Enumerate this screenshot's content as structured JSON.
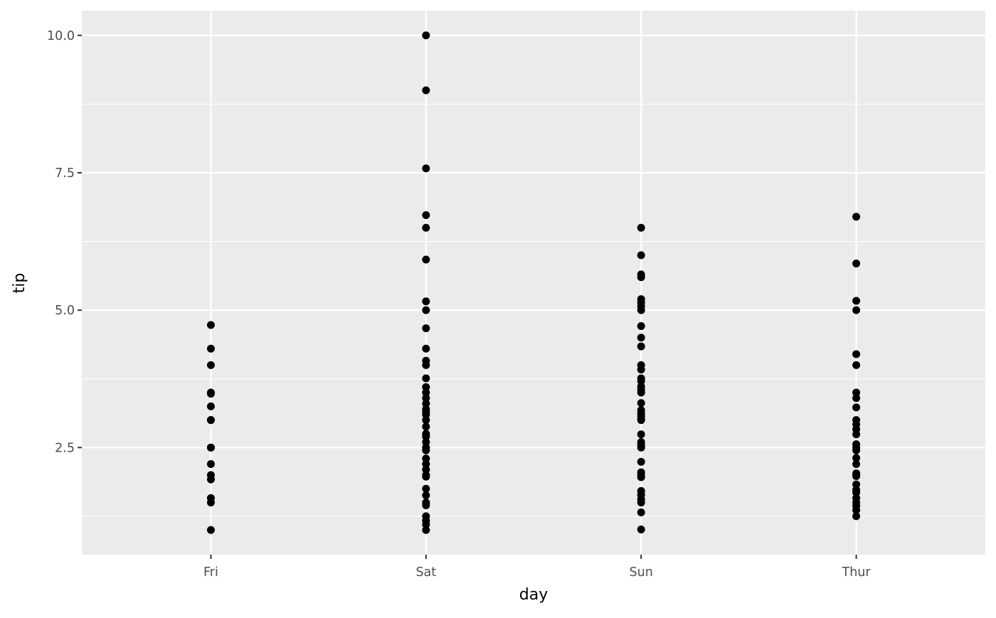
{
  "chart_data": {
    "type": "scatter",
    "title": "",
    "xlabel": "day",
    "ylabel": "tip",
    "categories": [
      "Fri",
      "Sat",
      "Sun",
      "Thur"
    ],
    "ylim": [
      0.55,
      10.45
    ],
    "yticks": [
      2.5,
      5.0,
      7.5,
      10.0
    ],
    "ytick_labels": [
      "2.5",
      "5.0",
      "7.5",
      "10.0"
    ],
    "grid": true,
    "colors": {
      "panel": "#EBEBEB",
      "grid": "#FFFFFF",
      "point": "#000000",
      "tick_text": "#4D4D4D"
    },
    "series": [
      {
        "category": "Fri",
        "values": [
          4.73,
          4.3,
          4.0,
          3.5,
          3.48,
          3.25,
          3.0,
          3.0,
          2.5,
          2.5,
          2.2,
          2.0,
          1.92,
          1.58,
          1.5,
          1.0
        ]
      },
      {
        "category": "Sat",
        "values": [
          10.0,
          9.0,
          7.58,
          6.73,
          6.5,
          5.92,
          5.16,
          5.0,
          4.67,
          4.3,
          4.08,
          4.0,
          3.76,
          3.6,
          3.5,
          3.4,
          3.3,
          3.2,
          3.15,
          3.1,
          3.0,
          2.88,
          2.75,
          2.7,
          2.6,
          2.5,
          2.45,
          2.3,
          2.2,
          2.1,
          2.0,
          1.97,
          1.75,
          1.63,
          1.5,
          1.45,
          1.25,
          1.17,
          1.1,
          1.0
        ]
      },
      {
        "category": "Sun",
        "values": [
          6.5,
          6.0,
          5.65,
          5.6,
          5.2,
          5.14,
          5.07,
          5.0,
          4.71,
          4.5,
          4.34,
          4.0,
          3.92,
          3.76,
          3.71,
          3.61,
          3.55,
          3.5,
          3.31,
          3.18,
          3.12,
          3.07,
          3.02,
          3.0,
          2.74,
          2.6,
          2.55,
          2.5,
          2.24,
          2.05,
          2.0,
          1.96,
          1.71,
          1.64,
          1.56,
          1.5,
          1.32,
          1.01
        ]
      },
      {
        "category": "Thur",
        "values": [
          6.7,
          5.85,
          5.17,
          5.0,
          4.2,
          4.0,
          3.5,
          3.4,
          3.23,
          3.0,
          2.92,
          2.83,
          2.74,
          2.56,
          2.5,
          2.45,
          2.31,
          2.2,
          2.03,
          2.0,
          1.98,
          1.83,
          1.73,
          1.68,
          1.58,
          1.5,
          1.44,
          1.36,
          1.25
        ]
      }
    ]
  }
}
